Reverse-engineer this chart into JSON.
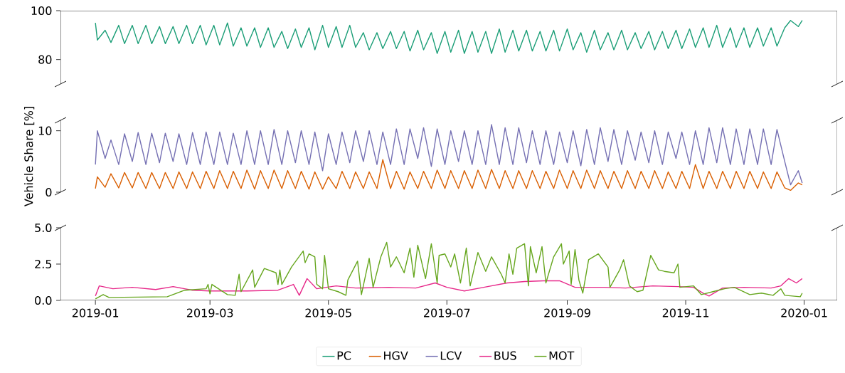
{
  "chart_data": [
    {
      "type": "line",
      "xlim": [
        "2018-12-14",
        "2020-01-18"
      ],
      "ylim": [
        70,
        100
      ],
      "yticks": [
        80,
        100
      ],
      "tick_labels": "y",
      "x": [
        "2019-01-01",
        "2019-01-02",
        "2019-01-06",
        "2019-01-09",
        "2019-01-13",
        "2019-01-16",
        "2019-01-20",
        "2019-01-23",
        "2019-01-27",
        "2019-01-30",
        "2019-02-03",
        "2019-02-06",
        "2019-02-10",
        "2019-02-13",
        "2019-02-17",
        "2019-02-20",
        "2019-02-24",
        "2019-02-27",
        "2019-03-03",
        "2019-03-06",
        "2019-03-10",
        "2019-03-13",
        "2019-03-17",
        "2019-03-20",
        "2019-03-24",
        "2019-03-27",
        "2019-03-31",
        "2019-04-03",
        "2019-04-07",
        "2019-04-10",
        "2019-04-14",
        "2019-04-17",
        "2019-04-21",
        "2019-04-24",
        "2019-04-28",
        "2019-05-01",
        "2019-05-05",
        "2019-05-08",
        "2019-05-12",
        "2019-05-15",
        "2019-05-19",
        "2019-05-22",
        "2019-05-26",
        "2019-05-29",
        "2019-06-02",
        "2019-06-05",
        "2019-06-09",
        "2019-06-12",
        "2019-06-16",
        "2019-06-19",
        "2019-06-23",
        "2019-06-26",
        "2019-06-30",
        "2019-07-03",
        "2019-07-07",
        "2019-07-10",
        "2019-07-14",
        "2019-07-17",
        "2019-07-21",
        "2019-07-24",
        "2019-07-28",
        "2019-07-31",
        "2019-08-04",
        "2019-08-07",
        "2019-08-11",
        "2019-08-14",
        "2019-08-18",
        "2019-08-21",
        "2019-08-25",
        "2019-08-28",
        "2019-09-01",
        "2019-09-04",
        "2019-09-08",
        "2019-09-11",
        "2019-09-15",
        "2019-09-18",
        "2019-09-22",
        "2019-09-25",
        "2019-09-29",
        "2019-10-02",
        "2019-10-06",
        "2019-10-09",
        "2019-10-13",
        "2019-10-16",
        "2019-10-20",
        "2019-10-23",
        "2019-10-27",
        "2019-10-30",
        "2019-11-03",
        "2019-11-06",
        "2019-11-10",
        "2019-11-13",
        "2019-11-17",
        "2019-11-20",
        "2019-11-24",
        "2019-11-27",
        "2019-12-01",
        "2019-12-04",
        "2019-12-08",
        "2019-12-11",
        "2019-12-15",
        "2019-12-18",
        "2019-12-22",
        "2019-12-25",
        "2019-12-29",
        "2019-12-31"
      ],
      "series": [
        {
          "name": "PC",
          "color": "#1b9e77",
          "values": [
            95,
            88,
            92,
            87,
            94,
            86.5,
            94,
            86.5,
            94,
            86.5,
            93.5,
            86.5,
            93.5,
            86.5,
            94,
            86.5,
            94,
            86,
            94,
            86,
            95,
            85.5,
            93,
            85.5,
            93,
            85,
            93,
            85,
            91.5,
            84.5,
            92.5,
            85,
            93,
            84,
            94,
            85,
            93.5,
            85,
            94,
            85,
            91,
            84,
            91,
            84.5,
            91.5,
            84.5,
            91.5,
            83.5,
            92,
            84,
            91,
            82.5,
            91.5,
            83,
            92,
            82.5,
            91.5,
            83,
            91.5,
            82.5,
            92.5,
            83,
            92,
            83.5,
            92,
            83.5,
            91.5,
            83.5,
            92,
            83.5,
            92.5,
            84,
            91,
            83,
            92,
            84,
            91,
            84,
            92,
            84,
            91,
            84.5,
            91.5,
            84,
            91.5,
            84.5,
            92,
            84.5,
            92.5,
            85,
            93,
            85,
            94,
            85,
            93,
            85,
            93,
            85,
            93,
            85.5,
            93,
            85.5,
            93,
            96,
            93.5,
            96
          ]
        }
      ]
    },
    {
      "type": "line",
      "xlim": [
        "2018-12-14",
        "2020-01-18"
      ],
      "ylim": [
        0,
        11.7
      ],
      "yticks": [
        0,
        10
      ],
      "tick_labels": "y",
      "ylabel": "Vehicle Share [%]",
      "x": [
        "2019-01-01",
        "2019-01-02",
        "2019-01-06",
        "2019-01-09",
        "2019-01-13",
        "2019-01-16",
        "2019-01-20",
        "2019-01-23",
        "2019-01-27",
        "2019-01-30",
        "2019-02-03",
        "2019-02-06",
        "2019-02-10",
        "2019-02-13",
        "2019-02-17",
        "2019-02-20",
        "2019-02-24",
        "2019-02-27",
        "2019-03-03",
        "2019-03-06",
        "2019-03-10",
        "2019-03-13",
        "2019-03-17",
        "2019-03-20",
        "2019-03-24",
        "2019-03-27",
        "2019-03-31",
        "2019-04-03",
        "2019-04-07",
        "2019-04-10",
        "2019-04-14",
        "2019-04-17",
        "2019-04-21",
        "2019-04-24",
        "2019-04-28",
        "2019-05-01",
        "2019-05-05",
        "2019-05-08",
        "2019-05-12",
        "2019-05-15",
        "2019-05-19",
        "2019-05-22",
        "2019-05-26",
        "2019-05-29",
        "2019-06-02",
        "2019-06-05",
        "2019-06-09",
        "2019-06-12",
        "2019-06-16",
        "2019-06-19",
        "2019-06-23",
        "2019-06-26",
        "2019-06-30",
        "2019-07-03",
        "2019-07-07",
        "2019-07-10",
        "2019-07-14",
        "2019-07-17",
        "2019-07-21",
        "2019-07-24",
        "2019-07-28",
        "2019-07-31",
        "2019-08-04",
        "2019-08-07",
        "2019-08-11",
        "2019-08-14",
        "2019-08-18",
        "2019-08-21",
        "2019-08-25",
        "2019-08-28",
        "2019-09-01",
        "2019-09-04",
        "2019-09-08",
        "2019-09-11",
        "2019-09-15",
        "2019-09-18",
        "2019-09-22",
        "2019-09-25",
        "2019-09-29",
        "2019-10-02",
        "2019-10-06",
        "2019-10-09",
        "2019-10-13",
        "2019-10-16",
        "2019-10-20",
        "2019-10-23",
        "2019-10-27",
        "2019-10-30",
        "2019-11-03",
        "2019-11-06",
        "2019-11-10",
        "2019-11-13",
        "2019-11-17",
        "2019-11-20",
        "2019-11-24",
        "2019-11-27",
        "2019-12-01",
        "2019-12-04",
        "2019-12-08",
        "2019-12-11",
        "2019-12-15",
        "2019-12-18",
        "2019-12-22",
        "2019-12-25",
        "2019-12-29",
        "2019-12-31"
      ],
      "series": [
        {
          "name": "HGV",
          "color": "#d95f02",
          "values": [
            0.6,
            2.5,
            0.8,
            3,
            0.7,
            3.2,
            0.7,
            3.2,
            0.6,
            3.2,
            0.6,
            3.2,
            0.6,
            3.3,
            0.6,
            3.3,
            0.6,
            3.4,
            0.6,
            3.5,
            0.6,
            3.4,
            0.6,
            3.6,
            0.5,
            3.5,
            0.6,
            3.6,
            0.6,
            3.5,
            0.6,
            3.4,
            0.5,
            3.3,
            0.5,
            2.5,
            0.6,
            3.4,
            0.6,
            3.3,
            0.6,
            3.3,
            0.6,
            5.3,
            0.6,
            3.4,
            0.5,
            3.3,
            0.6,
            3.4,
            0.6,
            3.6,
            0.6,
            3.5,
            0.6,
            3.5,
            0.6,
            3.6,
            0.6,
            3.7,
            0.6,
            3.5,
            0.6,
            3.5,
            0.6,
            3.5,
            0.6,
            3.4,
            0.6,
            3.6,
            0.6,
            3.5,
            0.6,
            3.6,
            0.6,
            3.5,
            0.6,
            3.4,
            0.6,
            3.5,
            0.6,
            3.4,
            0.6,
            3.5,
            0.6,
            3.3,
            0.6,
            3.4,
            0.6,
            4.5,
            0.6,
            3.4,
            0.6,
            3.4,
            0.6,
            3.4,
            0.6,
            3.4,
            0.6,
            3.3,
            0.6,
            3.3,
            0.7,
            0.3,
            1.5,
            1.2
          ]
        },
        {
          "name": "LCV",
          "color": "#7570b3",
          "values": [
            4.5,
            10,
            5.5,
            8.5,
            4.5,
            9.5,
            5,
            9.7,
            4.5,
            9.6,
            4.8,
            9.6,
            5,
            9.5,
            4.5,
            9.7,
            4.5,
            9.8,
            4.5,
            9.8,
            4.5,
            9.6,
            4.5,
            10,
            4.5,
            10,
            4.5,
            10.2,
            4.5,
            10,
            4.8,
            10,
            4.5,
            9.8,
            3.5,
            9.5,
            4.5,
            9.8,
            4.8,
            10,
            5,
            10,
            4.5,
            9.8,
            4.5,
            10.3,
            4.5,
            10.3,
            5.5,
            10.5,
            4.2,
            10.3,
            4.5,
            10,
            5,
            10,
            4.5,
            10,
            4.5,
            11,
            4.5,
            10.5,
            4.5,
            10.5,
            4.8,
            10,
            4.5,
            10,
            4.5,
            9.8,
            4.8,
            10,
            4.3,
            10.2,
            4.5,
            10.5,
            5,
            10.2,
            4.5,
            10,
            5.2,
            9.8,
            4.8,
            10,
            4.5,
            9.8,
            5.5,
            9.8,
            4.5,
            10,
            4.5,
            10.5,
            4.8,
            10.5,
            4.5,
            10.3,
            4.5,
            10.3,
            4.5,
            10.3,
            4.5,
            10.2,
            5,
            1.2,
            3.5,
            1.5
          ]
        }
      ]
    },
    {
      "type": "line",
      "xlim": [
        "2018-12-14",
        "2020-01-18"
      ],
      "ylim": [
        0,
        5
      ],
      "yticks": [
        {
          "value": 0,
          "label": "0.0"
        },
        {
          "value": 2.5,
          "label": "2.5"
        },
        {
          "value": 5,
          "label": "5.0"
        }
      ],
      "xticks": [
        "2019-01",
        "2019-03",
        "2019-05",
        "2019-07",
        "2019-09",
        "2019-11",
        "2020-01"
      ],
      "legend": "bottom",
      "series": [
        {
          "name": "BUS",
          "color": "#e7298a",
          "x": [
            "2019-01-01",
            "2019-01-03",
            "2019-01-10",
            "2019-01-20",
            "2019-02-01",
            "2019-02-10",
            "2019-02-20",
            "2019-03-01",
            "2019-03-20",
            "2019-04-05",
            "2019-04-13",
            "2019-04-16",
            "2019-04-20",
            "2019-04-25",
            "2019-05-05",
            "2019-05-15",
            "2019-06-01",
            "2019-06-15",
            "2019-06-25",
            "2019-07-01",
            "2019-07-10",
            "2019-07-20",
            "2019-08-01",
            "2019-08-10",
            "2019-08-20",
            "2019-08-28",
            "2019-09-05",
            "2019-09-20",
            "2019-10-01",
            "2019-10-15",
            "2019-10-28",
            "2019-11-05",
            "2019-11-10",
            "2019-11-13",
            "2019-11-20",
            "2019-12-01",
            "2019-12-15",
            "2019-12-20",
            "2019-12-24",
            "2019-12-28",
            "2019-12-31"
          ],
          "values": [
            0.3,
            1.0,
            0.8,
            0.9,
            0.75,
            0.95,
            0.7,
            0.65,
            0.65,
            0.7,
            1.1,
            0.35,
            1.5,
            0.8,
            1.0,
            0.85,
            0.9,
            0.85,
            1.2,
            0.9,
            0.65,
            0.9,
            1.2,
            1.3,
            1.35,
            1.35,
            0.9,
            0.9,
            0.85,
            1.0,
            0.95,
            0.9,
            0.5,
            0.3,
            0.85,
            0.9,
            0.85,
            1.0,
            1.5,
            1.2,
            1.5
          ]
        },
        {
          "name": "MOT",
          "color": "#66a61e",
          "x": [
            "2019-01-01",
            "2019-01-05",
            "2019-01-08",
            "2019-02-07",
            "2019-02-16",
            "2019-02-27",
            "2019-02-28",
            "2019-03-01",
            "2019-03-02",
            "2019-03-10",
            "2019-03-14",
            "2019-03-16",
            "2019-03-17",
            "2019-03-23",
            "2019-03-24",
            "2019-03-29",
            "2019-04-04",
            "2019-04-05",
            "2019-04-06",
            "2019-04-07",
            "2019-04-12",
            "2019-04-18",
            "2019-04-19",
            "2019-04-21",
            "2019-04-24",
            "2019-04-25",
            "2019-04-28",
            "2019-04-29",
            "2019-05-01",
            "2019-05-06",
            "2019-05-10",
            "2019-05-11",
            "2019-05-16",
            "2019-05-18",
            "2019-05-22",
            "2019-05-24",
            "2019-05-28",
            "2019-05-31",
            "2019-06-02",
            "2019-06-05",
            "2019-06-09",
            "2019-06-12",
            "2019-06-14",
            "2019-06-16",
            "2019-06-20",
            "2019-06-23",
            "2019-06-26",
            "2019-06-27",
            "2019-06-30",
            "2019-07-03",
            "2019-07-05",
            "2019-07-08",
            "2019-07-11",
            "2019-07-13",
            "2019-07-17",
            "2019-07-21",
            "2019-07-24",
            "2019-07-29",
            "2019-07-31",
            "2019-08-02",
            "2019-08-04",
            "2019-08-06",
            "2019-08-10",
            "2019-08-12",
            "2019-08-13",
            "2019-08-16",
            "2019-08-19",
            "2019-08-21",
            "2019-08-25",
            "2019-08-29",
            "2019-08-30",
            "2019-09-02",
            "2019-09-03",
            "2019-09-05",
            "2019-09-07",
            "2019-09-09",
            "2019-09-12",
            "2019-09-17",
            "2019-09-22",
            "2019-09-23",
            "2019-09-28",
            "2019-09-30",
            "2019-10-03",
            "2019-10-07",
            "2019-10-10",
            "2019-10-14",
            "2019-10-18",
            "2019-10-21",
            "2019-10-26",
            "2019-10-28",
            "2019-10-29",
            "2019-11-05",
            "2019-11-09",
            "2019-11-15",
            "2019-11-21",
            "2019-11-26",
            "2019-12-04",
            "2019-12-10",
            "2019-12-16",
            "2019-12-20",
            "2019-12-22",
            "2019-12-30",
            "2019-12-31"
          ],
          "values": [
            0.1,
            0.4,
            0.2,
            0.25,
            0.7,
            0.8,
            1.1,
            0.45,
            1.1,
            0.4,
            0.35,
            1.8,
            0.6,
            2.1,
            0.9,
            2.2,
            1.9,
            1.1,
            2.1,
            1.1,
            2.3,
            3.4,
            2.6,
            3.2,
            3.0,
            1.1,
            0.8,
            3.1,
            0.8,
            0.6,
            0.35,
            1.4,
            2.7,
            0.4,
            2.9,
            0.9,
            3.0,
            4.0,
            2.3,
            3.0,
            1.9,
            3.6,
            1.6,
            3.8,
            1.5,
            3.9,
            1.2,
            3.1,
            3.2,
            2.3,
            3.2,
            1.2,
            3.6,
            1.0,
            3.3,
            2.0,
            3.0,
            1.8,
            1.2,
            3.2,
            1.8,
            3.6,
            3.9,
            1.0,
            3.7,
            1.9,
            3.7,
            1.2,
            3.0,
            3.9,
            2.5,
            3.4,
            1.1,
            3.5,
            1.4,
            0.5,
            2.8,
            3.2,
            2.3,
            0.9,
            2.1,
            2.8,
            1.0,
            0.6,
            0.7,
            3.1,
            2.1,
            2.0,
            1.9,
            2.5,
            0.9,
            1.0,
            0.4,
            0.6,
            0.8,
            0.9,
            0.4,
            0.5,
            0.35,
            0.8,
            0.35,
            0.25,
            0.5
          ]
        }
      ]
    }
  ]
}
